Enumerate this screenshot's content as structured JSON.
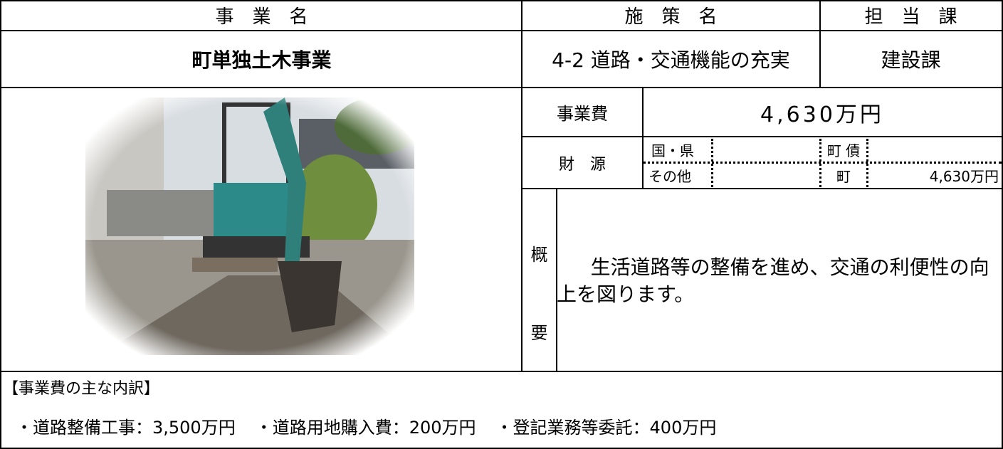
{
  "header": {
    "project_name_label": "事　業　名",
    "measure_label": "施　策　名",
    "department_label": "担　当　課"
  },
  "project": {
    "name": "町単独土木事業",
    "measure": "4-2 道路・交通機能の充実",
    "department": "建設課"
  },
  "cost": {
    "label": "事業費",
    "total": "4,630万円"
  },
  "funding": {
    "label": "財　源",
    "national_prefectural": "国・県",
    "other": "その他",
    "town_bond": "町 債",
    "town": {
      "label": "町",
      "value": "4,630万円"
    }
  },
  "summary": {
    "label_top": "概",
    "label_bottom": "要",
    "text": "生活道路等の整備を進め、交通の利便性の向上を図ります。"
  },
  "breakdown": {
    "title": "【事業費の主な内訳】",
    "items": [
      "・道路整備工事：3,500万円",
      "・道路用地購入費：200万円",
      "・登記業務等委託：400万円"
    ]
  }
}
